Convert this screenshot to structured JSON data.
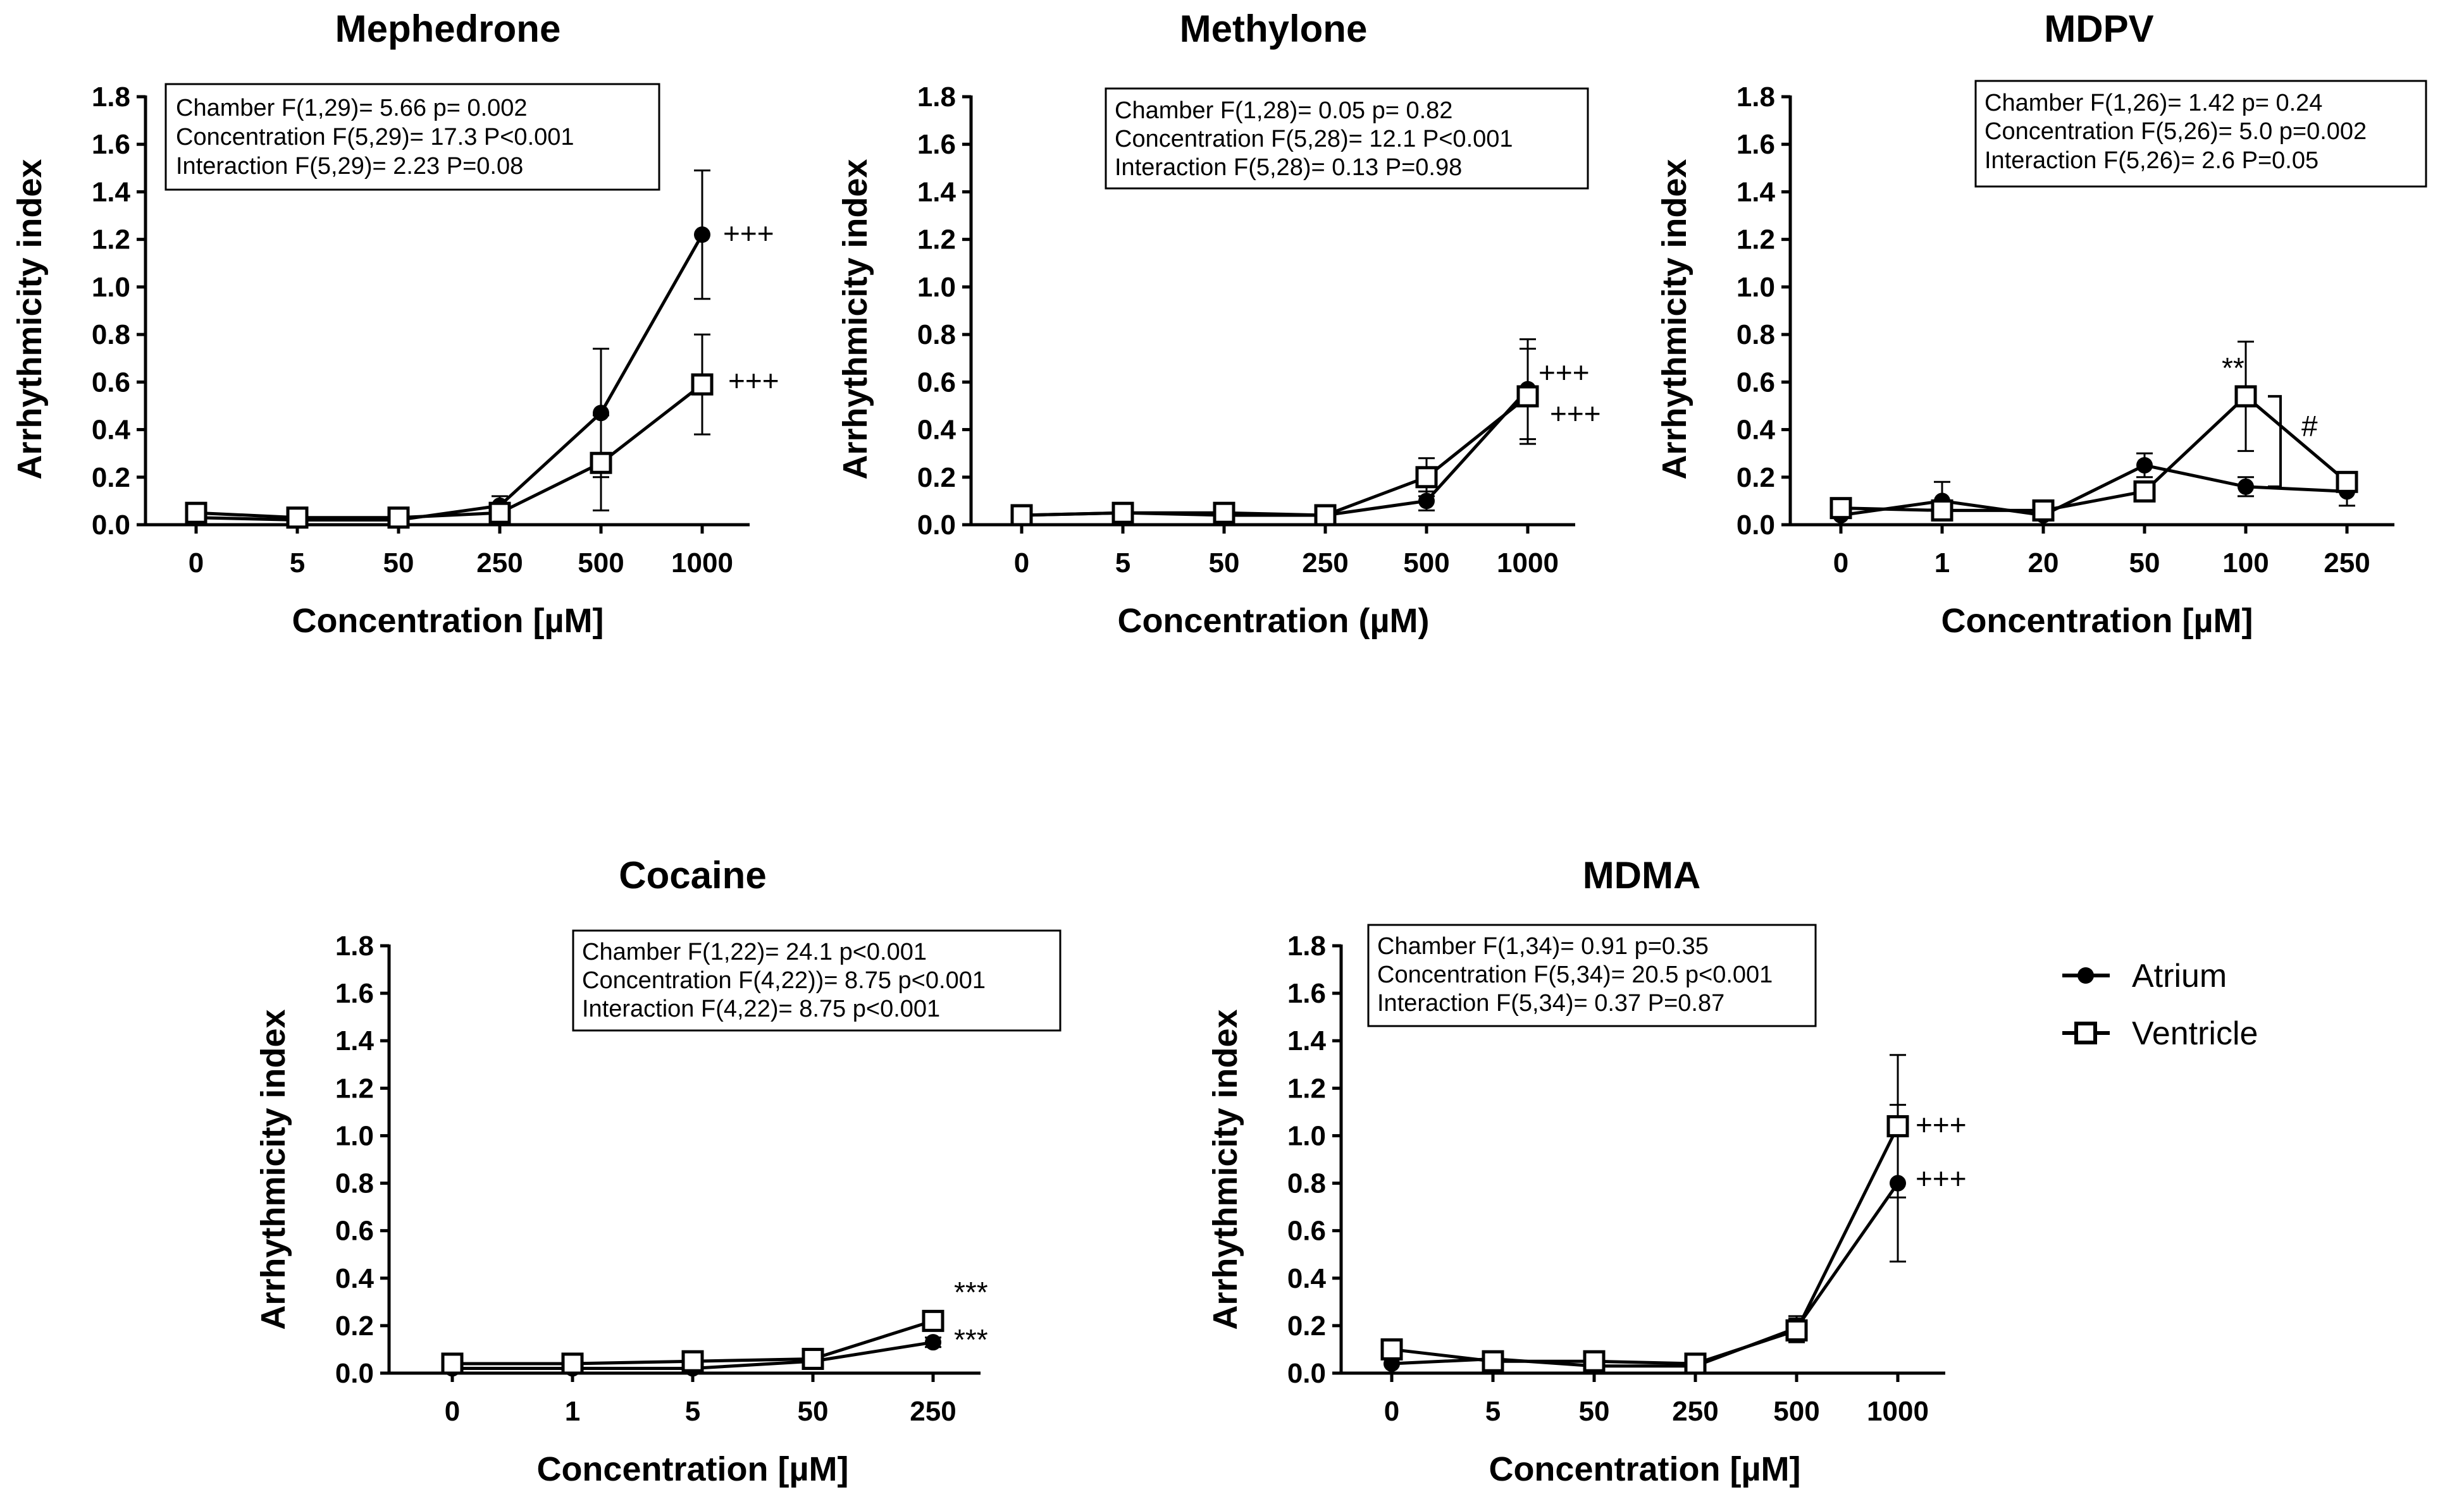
{
  "legend": {
    "items": [
      "Atrium",
      "Ventricle"
    ]
  },
  "chart_data": [
    {
      "type": "line",
      "title": "Mephedrone",
      "xlabel": "Concentration [µM]",
      "ylabel": "Arrhythmicity index",
      "categories": [
        "0",
        "5",
        "50",
        "250",
        "500",
        "1000"
      ],
      "ylim": [
        0,
        1.8
      ],
      "yticks": [
        "0.0",
        "0.2",
        "0.4",
        "0.6",
        "0.8",
        "1.0",
        "1.2",
        "1.4",
        "1.6",
        "1.8"
      ],
      "stats": [
        "Chamber F(1,29)= 5.66 p= 0.002",
        "Concentration F(5,29)= 17.3 P<0.001",
        "Interaction F(5,29)= 2.23 P=0.08"
      ],
      "series": [
        {
          "name": "Atrium",
          "values": [
            0.03,
            0.02,
            0.02,
            0.08,
            0.47,
            1.22
          ],
          "errors": [
            0.01,
            0.01,
            0.01,
            0.04,
            0.27,
            0.27
          ]
        },
        {
          "name": "Ventricle",
          "values": [
            0.05,
            0.03,
            0.03,
            0.05,
            0.26,
            0.59
          ],
          "errors": [
            0.01,
            0.01,
            0.01,
            0.02,
            0.2,
            0.21
          ]
        }
      ],
      "annotations": [
        {
          "text": "+++",
          "series": 0,
          "index": 5
        },
        {
          "text": "+++",
          "series": 1,
          "index": 5
        }
      ]
    },
    {
      "type": "line",
      "title": "Methylone",
      "xlabel": "Concentration (µM)",
      "ylabel": "Arrhythmicity index",
      "categories": [
        "0",
        "5",
        "50",
        "250",
        "500",
        "1000"
      ],
      "ylim": [
        0,
        1.8
      ],
      "yticks": [
        "0.0",
        "0.2",
        "0.4",
        "0.6",
        "0.8",
        "1.0",
        "1.2",
        "1.4",
        "1.6",
        "1.8"
      ],
      "stats": [
        "Chamber F(1,28)= 0.05 p= 0.82",
        "Concentration F(5,28)= 12.1 P<0.001",
        "Interaction F(5,28)= 0.13 P=0.98"
      ],
      "series": [
        {
          "name": "Atrium",
          "values": [
            0.04,
            0.05,
            0.04,
            0.04,
            0.1,
            0.57
          ],
          "errors": [
            0.01,
            0.01,
            0.01,
            0.01,
            0.04,
            0.21
          ]
        },
        {
          "name": "Ventricle",
          "values": [
            0.04,
            0.05,
            0.05,
            0.04,
            0.2,
            0.54
          ],
          "errors": [
            0.01,
            0.01,
            0.01,
            0.01,
            0.08,
            0.2
          ]
        }
      ],
      "annotations": [
        {
          "text": "+++",
          "series": 0,
          "index": 5
        },
        {
          "text": "+++",
          "series": 1,
          "index": 5
        }
      ]
    },
    {
      "type": "line",
      "title": "MDPV",
      "xlabel": "Concentration [µM]",
      "ylabel": "Arrhythmicity index",
      "categories": [
        "0",
        "1",
        "20",
        "50",
        "100",
        "250"
      ],
      "ylim": [
        0,
        1.8
      ],
      "yticks": [
        "0.0",
        "0.2",
        "0.4",
        "0.6",
        "0.8",
        "1.0",
        "1.2",
        "1.4",
        "1.6",
        "1.8"
      ],
      "stats": [
        "Chamber F(1,26)= 1.42 p= 0.24",
        "Concentration F(5,26)= 5.0 p=0.002",
        "Interaction F(5,26)= 2.6 P=0.05"
      ],
      "series": [
        {
          "name": "Atrium",
          "values": [
            0.04,
            0.1,
            0.04,
            0.25,
            0.16,
            0.14
          ],
          "errors": [
            0.01,
            0.08,
            0.01,
            0.05,
            0.04,
            0.06
          ]
        },
        {
          "name": "Ventricle",
          "values": [
            0.07,
            0.06,
            0.06,
            0.14,
            0.54,
            0.18
          ],
          "errors": [
            0.01,
            0.01,
            0.01,
            0.03,
            0.23,
            0.03
          ]
        }
      ],
      "annotations": [
        {
          "text": "**",
          "series": 1,
          "index": 4
        },
        {
          "text": "#",
          "series": 1,
          "index": 4
        }
      ]
    },
    {
      "type": "line",
      "title": "Cocaine",
      "xlabel": "Concentration [µM]",
      "ylabel": "Arrhythmicity index",
      "categories": [
        "0",
        "1",
        "5",
        "50",
        "250"
      ],
      "ylim": [
        0,
        1.8
      ],
      "yticks": [
        "0.0",
        "0.2",
        "0.4",
        "0.6",
        "0.8",
        "1.0",
        "1.2",
        "1.4",
        "1.6",
        "1.8"
      ],
      "stats": [
        "Chamber F(1,22)= 24.1 p<0.001",
        "Concentration F(4,22))= 8.75 p<0.001",
        "Interaction F(4,22)= 8.75 p<0.001"
      ],
      "series": [
        {
          "name": "Atrium",
          "values": [
            0.02,
            0.02,
            0.02,
            0.05,
            0.13
          ],
          "errors": [
            0.01,
            0.01,
            0.01,
            0.01,
            0.02
          ]
        },
        {
          "name": "Ventricle",
          "values": [
            0.04,
            0.04,
            0.05,
            0.06,
            0.22
          ],
          "errors": [
            0.01,
            0.01,
            0.01,
            0.01,
            0.02
          ]
        }
      ],
      "annotations": [
        {
          "text": "***",
          "series": 1,
          "index": 4
        },
        {
          "text": "***",
          "series": 0,
          "index": 4
        }
      ]
    },
    {
      "type": "line",
      "title": "MDMA",
      "xlabel": "Concentration [µM]",
      "ylabel": "Arrhythmicity index",
      "categories": [
        "0",
        "5",
        "50",
        "250",
        "500",
        "1000"
      ],
      "ylim": [
        0,
        1.8
      ],
      "yticks": [
        "0.0",
        "0.2",
        "0.4",
        "0.6",
        "0.8",
        "1.0",
        "1.2",
        "1.4",
        "1.6",
        "1.8"
      ],
      "stats": [
        "Chamber F(1,34)= 0.91  p=0.35",
        "Concentration F(5,34)= 20.5 p<0.001",
        "Interaction F(5,34)= 0.37 P=0.87"
      ],
      "series": [
        {
          "name": "Atrium",
          "values": [
            0.04,
            0.06,
            0.03,
            0.03,
            0.19,
            0.8
          ],
          "errors": [
            0.01,
            0.01,
            0.01,
            0.01,
            0.05,
            0.33
          ]
        },
        {
          "name": "Ventricle",
          "values": [
            0.1,
            0.05,
            0.05,
            0.04,
            0.18,
            1.04
          ],
          "errors": [
            0.01,
            0.01,
            0.01,
            0.01,
            0.05,
            0.3
          ]
        }
      ],
      "annotations": [
        {
          "text": "+++",
          "series": 1,
          "index": 5
        },
        {
          "text": "+++",
          "series": 0,
          "index": 5
        }
      ]
    }
  ]
}
